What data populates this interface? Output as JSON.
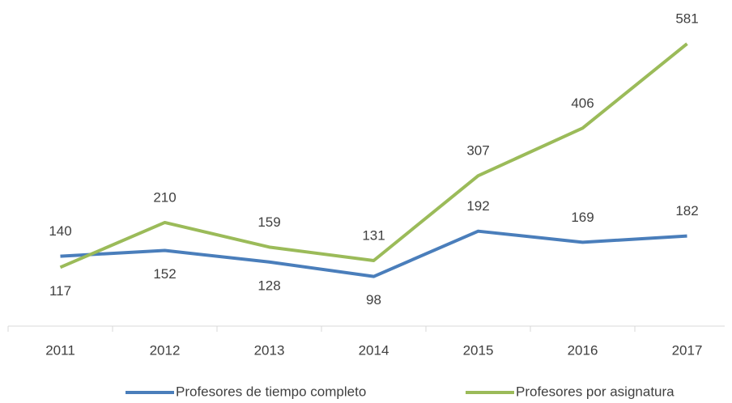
{
  "chart_data": {
    "type": "line",
    "categories": [
      "2011",
      "2012",
      "2013",
      "2014",
      "2015",
      "2016",
      "2017"
    ],
    "series": [
      {
        "name": "Profesores de tiempo completo",
        "color": "#4a7ebb",
        "values": [
          140,
          152,
          128,
          98,
          192,
          169,
          182
        ]
      },
      {
        "name": "Profesores por asignatura",
        "color": "#9bbb59",
        "values": [
          117,
          210,
          159,
          131,
          307,
          406,
          581
        ]
      }
    ],
    "ylim": [
      0,
      650
    ],
    "legend": "bottom"
  }
}
